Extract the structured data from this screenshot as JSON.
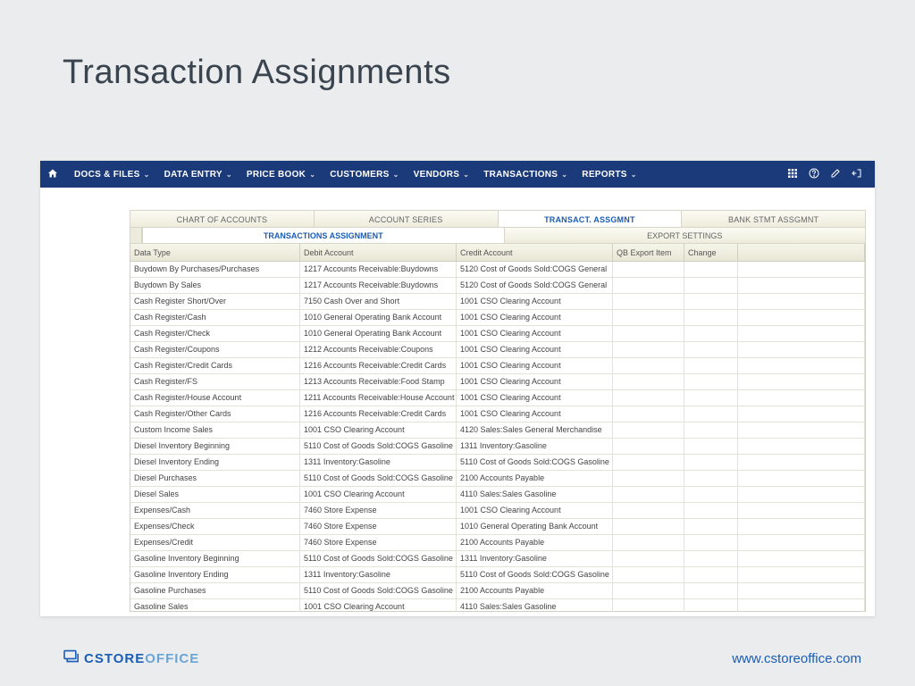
{
  "slide": {
    "title": "Transaction Assignments"
  },
  "nav": {
    "items": [
      "DOCS & FILES",
      "DATA ENTRY",
      "PRICE BOOK",
      "CUSTOMERS",
      "VENDORS",
      "TRANSACTIONS",
      "REPORTS"
    ],
    "bg_color": "#1a3a7a"
  },
  "tabs": {
    "level1": [
      "CHART OF ACCOUNTS",
      "ACCOUNT SERIES",
      "TRANSACT.  ASSGMNT",
      "BANK STMT ASSGMNT"
    ],
    "level1_active_index": 2,
    "level2": [
      "TRANSACTIONS ASSIGNMENT",
      "EXPORT SETTINGS"
    ],
    "level2_active_index": 0
  },
  "grid": {
    "columns": [
      "Data Type",
      "Debit Account",
      "Credit Account",
      "QB Export Item",
      "Change"
    ],
    "rows": [
      [
        "Buydown By Purchases/Purchases",
        "1217 Accounts Receivable:Buydowns",
        "5120 Cost of Goods Sold:COGS General",
        "",
        ""
      ],
      [
        "Buydown By Sales",
        "1217 Accounts Receivable:Buydowns",
        "5120 Cost of Goods Sold:COGS General",
        "",
        ""
      ],
      [
        "Cash Register Short/Over",
        "7150 Cash Over and Short",
        "1001 CSO Clearing Account",
        "",
        ""
      ],
      [
        "Cash Register/Cash",
        "1010 General Operating Bank Account",
        "1001 CSO Clearing Account",
        "",
        ""
      ],
      [
        "Cash Register/Check",
        "1010 General Operating Bank Account",
        "1001 CSO Clearing Account",
        "",
        ""
      ],
      [
        "Cash Register/Coupons",
        "1212 Accounts Receivable:Coupons",
        "1001 CSO Clearing Account",
        "",
        ""
      ],
      [
        "Cash Register/Credit Cards",
        "1216 Accounts Receivable:Credit Cards",
        "1001 CSO Clearing Account",
        "",
        ""
      ],
      [
        "Cash Register/FS",
        "1213 Accounts Receivable:Food Stamp",
        "1001 CSO Clearing Account",
        "",
        ""
      ],
      [
        "Cash Register/House Account",
        "1211 Accounts Receivable:House Account",
        "1001 CSO Clearing Account",
        "",
        ""
      ],
      [
        "Cash Register/Other Cards",
        "1216 Accounts Receivable:Credit Cards",
        "1001 CSO Clearing Account",
        "",
        ""
      ],
      [
        "Custom Income Sales",
        "1001 CSO Clearing Account",
        "4120 Sales:Sales General Merchandise",
        "",
        ""
      ],
      [
        "Diesel Inventory Beginning",
        "5110 Cost of Goods Sold:COGS Gasoline",
        "1311 Inventory:Gasoline",
        "",
        ""
      ],
      [
        "Diesel Inventory Ending",
        "1311 Inventory:Gasoline",
        "5110 Cost of Goods Sold:COGS Gasoline",
        "",
        ""
      ],
      [
        "Diesel Purchases",
        "5110 Cost of Goods Sold:COGS Gasoline",
        "2100 Accounts Payable",
        "",
        ""
      ],
      [
        "Diesel Sales",
        "1001 CSO Clearing Account",
        "4110 Sales:Sales Gasoline",
        "",
        ""
      ],
      [
        "Expenses/Cash",
        "7460 Store Expense",
        "1001 CSO Clearing Account",
        "",
        ""
      ],
      [
        "Expenses/Check",
        "7460 Store Expense",
        "1010 General Operating Bank Account",
        "",
        ""
      ],
      [
        "Expenses/Credit",
        "7460 Store Expense",
        "2100 Accounts Payable",
        "",
        ""
      ],
      [
        "Gasoline Inventory Beginning",
        "5110 Cost of Goods Sold:COGS Gasoline",
        "1311 Inventory:Gasoline",
        "",
        ""
      ],
      [
        "Gasoline Inventory Ending",
        "1311 Inventory:Gasoline",
        "5110 Cost of Goods Sold:COGS Gasoline",
        "",
        ""
      ],
      [
        "Gasoline Purchases",
        "5110 Cost of Goods Sold:COGS Gasoline",
        "2100 Accounts Payable",
        "",
        ""
      ],
      [
        "Gasoline Sales",
        "1001 CSO Clearing Account",
        "4110 Sales:Sales Gasoline",
        "",
        ""
      ]
    ]
  },
  "footer": {
    "logo_text1": "CSTORE",
    "logo_text2": "OFFICE",
    "url": "www.cstoreoffice.com"
  },
  "colors": {
    "background": "#ebecee",
    "accent": "#1a5db6",
    "nav": "#1a3a7a",
    "header_grad_top": "#f5f5ea",
    "header_grad_bot": "#e8e7d6"
  }
}
